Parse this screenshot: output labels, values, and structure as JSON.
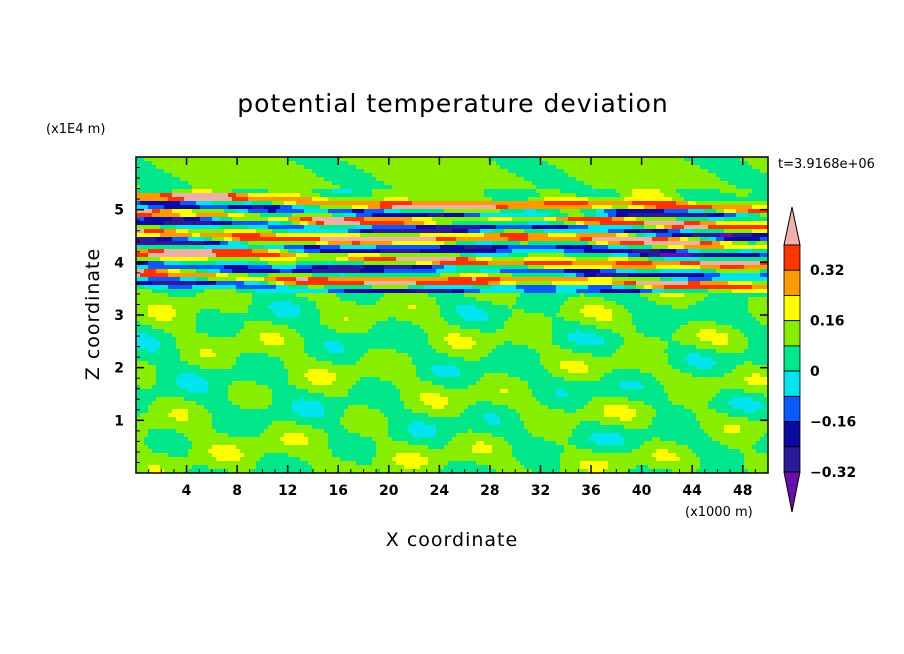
{
  "chart_data": {
    "type": "heatmap",
    "title": "potential temperature deviation",
    "xlabel": "X coordinate",
    "ylabel": "Z coordinate",
    "x_units": "(x1000 m)",
    "y_units": "(x1E4 m)",
    "time_label": "t=3.9168e+06",
    "xlim": [
      0,
      50
    ],
    "ylim": [
      0,
      6
    ],
    "x_ticks": [
      4,
      8,
      12,
      16,
      20,
      24,
      28,
      32,
      36,
      40,
      44,
      48
    ],
    "x_tick_labels": [
      "4",
      "8",
      "12",
      "16",
      "20",
      "24",
      "28",
      "32",
      "36",
      "40",
      "44",
      "48"
    ],
    "y_ticks": [
      1,
      2,
      3,
      4,
      5
    ],
    "y_tick_labels": [
      "1",
      "2",
      "3",
      "4",
      "5"
    ],
    "colorbar": {
      "levels": [
        -0.4,
        -0.32,
        -0.24,
        -0.16,
        -0.08,
        0,
        0.08,
        0.16,
        0.24,
        0.32,
        0.4
      ],
      "tick_values": [
        -0.32,
        -0.16,
        0,
        0.16,
        0.32
      ],
      "tick_labels": [
        "−0.32",
        "−0.16",
        "0",
        "0.16",
        "0.32"
      ],
      "colors": [
        "#6a0dad",
        "#2a1a9a",
        "#0a0aa0",
        "#0a5aff",
        "#00e5ee",
        "#00e68a",
        "#88ee00",
        "#ffff00",
        "#ff9900",
        "#ff3300",
        "#f0b0a8"
      ],
      "extend": "both"
    },
    "bands": [
      {
        "z": 5.2,
        "amp": 1.0,
        "k": 0.2,
        "ph": 0.3
      },
      {
        "z": 5.05,
        "amp": -1.0,
        "k": 0.15,
        "ph": 1.1
      },
      {
        "z": 4.9,
        "amp": 1.0,
        "k": 0.18,
        "ph": 2.0
      },
      {
        "z": 4.75,
        "amp": -1.0,
        "k": 0.22,
        "ph": 0.6
      },
      {
        "z": 4.55,
        "amp": 1.0,
        "k": 0.16,
        "ph": 2.5
      },
      {
        "z": 4.35,
        "amp": -1.0,
        "k": 0.2,
        "ph": 1.4
      },
      {
        "z": 4.15,
        "amp": 1.0,
        "k": 0.14,
        "ph": 0.2
      },
      {
        "z": 3.95,
        "amp": -1.0,
        "k": 0.19,
        "ph": 2.9
      },
      {
        "z": 3.75,
        "amp": 1.0,
        "k": 0.17,
        "ph": 1.8
      },
      {
        "z": 3.58,
        "amp": -0.8,
        "k": 0.21,
        "ph": 0.9
      }
    ]
  }
}
